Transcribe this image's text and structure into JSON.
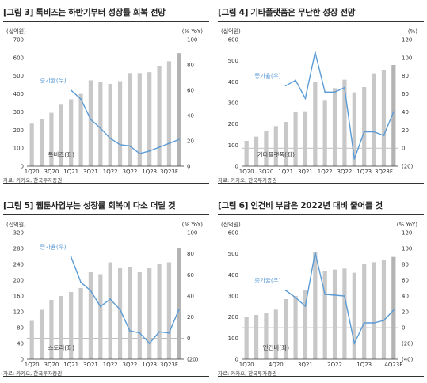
{
  "source_label": "자료: 카카오, 한국투자증권",
  "colors": {
    "bar": "#c8c8c8",
    "bar_last": "#b4b4b4",
    "line": "#5b9bd5",
    "text": "#222222"
  },
  "chart_data": [
    {
      "type": "bar",
      "title": "[그림 3] 톡비즈는 하반기부터 성장률 회복 전망",
      "left_unit": "(십억원)",
      "right_unit": "(% YoY)",
      "left_ticks": [
        "0",
        "100",
        "200",
        "300",
        "400",
        "500",
        "600",
        "700"
      ],
      "right_ticks": [
        "0",
        "20",
        "40",
        "60",
        "80",
        "100"
      ],
      "x_ticks": [
        "1Q20",
        "3Q20",
        "1Q21",
        "3Q21",
        "1Q22",
        "3Q22",
        "1Q23",
        "3Q23F"
      ],
      "ylim_left": [
        0,
        700
      ],
      "ylim_right": [
        0,
        100
      ],
      "bar_label": "톡비즈(좌)",
      "line_label": "증가율(우)",
      "categories": [
        "1Q20",
        "2Q20",
        "3Q20",
        "4Q20",
        "1Q21",
        "2Q21",
        "3Q21",
        "4Q21",
        "1Q22",
        "2Q22",
        "3Q22",
        "4Q22",
        "1Q23",
        "2Q23",
        "3Q23F",
        "4Q23F"
      ],
      "bars": [
        235,
        260,
        295,
        340,
        370,
        400,
        475,
        465,
        455,
        470,
        515,
        515,
        520,
        555,
        580,
        625
      ],
      "line_start": 4,
      "line": [
        60,
        53,
        37,
        30,
        22,
        17,
        16,
        10,
        12,
        15,
        18,
        21
      ]
    },
    {
      "type": "bar",
      "title": "[그림 4] 기타플랫폼은 무난한 성장 전망",
      "left_unit": "(십억원)",
      "right_unit": "(%)",
      "left_ticks": [
        "0",
        "100",
        "200",
        "300",
        "400",
        "500",
        "600"
      ],
      "right_ticks": [
        "(20)",
        "0",
        "20",
        "40",
        "60",
        "80",
        "100",
        "120"
      ],
      "x_ticks": [
        "1Q20",
        "3Q20",
        "1Q21",
        "3Q21",
        "1Q22",
        "3Q22",
        "1Q23",
        "3Q23F"
      ],
      "ylim_left": [
        0,
        600
      ],
      "ylim_right": [
        -20,
        120
      ],
      "bar_label": "기타플랫폼(좌)",
      "line_label": "증가율(우)",
      "categories": [
        "1Q20",
        "2Q20",
        "3Q20",
        "4Q20",
        "1Q21",
        "2Q21",
        "3Q21",
        "4Q21",
        "1Q22",
        "2Q22",
        "3Q22",
        "4Q22",
        "1Q23",
        "2Q23",
        "3Q23F",
        "4Q23F"
      ],
      "bars": [
        120,
        140,
        165,
        190,
        210,
        255,
        260,
        400,
        310,
        370,
        410,
        350,
        375,
        440,
        455,
        480
      ],
      "line_start": 4,
      "line": [
        69,
        75,
        55,
        106,
        62,
        62,
        67,
        -12,
        18,
        18,
        14,
        40
      ]
    },
    {
      "type": "bar",
      "title": "[그림 5] 웹툰사업부는 성장률 회복이 다소 더딜 것",
      "left_unit": "(십억원)",
      "right_unit": "(% YoY)",
      "left_ticks": [
        "0",
        "40",
        "80",
        "120",
        "160",
        "200",
        "240",
        "280",
        "320"
      ],
      "right_ticks": [
        "(20)",
        "0",
        "20",
        "40",
        "60",
        "80",
        "100"
      ],
      "x_ticks": [
        "1Q20",
        "3Q20",
        "1Q21",
        "3Q21",
        "1Q22",
        "3Q22",
        "1Q23",
        "3Q23F"
      ],
      "ylim_left": [
        0,
        320
      ],
      "ylim_right": [
        -20,
        100
      ],
      "bar_label": "스토리(좌)",
      "line_label": "증가율(우)",
      "categories": [
        "1Q20",
        "2Q20",
        "3Q20",
        "4Q20",
        "1Q21",
        "2Q21",
        "3Q21",
        "4Q21",
        "1Q22",
        "2Q22",
        "3Q22",
        "4Q22",
        "1Q23",
        "2Q23",
        "3Q23F",
        "4Q23F"
      ],
      "bars": [
        97,
        125,
        150,
        160,
        170,
        180,
        220,
        215,
        245,
        230,
        233,
        220,
        230,
        240,
        245,
        282
      ],
      "line_start": 4,
      "line": [
        77,
        53,
        45,
        30,
        37,
        27,
        7,
        5,
        -5,
        6,
        5,
        27
      ]
    },
    {
      "type": "bar",
      "title": "[그림 6] 인건비 부담은 2022년 대비 줄어들 것",
      "left_unit": "(십억원)",
      "right_unit": "(% YoY)",
      "left_ticks": [
        "0",
        "100",
        "200",
        "300",
        "400",
        "500",
        "600"
      ],
      "right_ticks": [
        "(40)",
        "(20)",
        "0",
        "20",
        "40",
        "60",
        "80",
        "100",
        "120"
      ],
      "x_ticks": [
        "1Q20",
        "4Q20",
        "3Q21",
        "2Q22",
        "1Q23",
        "4Q23F"
      ],
      "x_tick_positions": [
        0,
        3,
        6,
        9,
        12,
        15
      ],
      "ylim_left": [
        0,
        600
      ],
      "ylim_right": [
        -40,
        120
      ],
      "bar_label": "인건비(좌)",
      "line_label": "증가율(우)",
      "categories": [
        "1Q20",
        "2Q20",
        "3Q20",
        "4Q20",
        "1Q21",
        "2Q21",
        "3Q21",
        "4Q21",
        "1Q22",
        "2Q22",
        "3Q22",
        "4Q22",
        "1Q23",
        "2Q23",
        "3Q23F",
        "4Q23F"
      ],
      "bars": [
        200,
        210,
        220,
        235,
        285,
        300,
        330,
        510,
        420,
        425,
        430,
        410,
        450,
        460,
        470,
        485
      ],
      "line_start": 4,
      "line": [
        47,
        38,
        27,
        95,
        42,
        41,
        40,
        -20,
        6,
        6,
        9,
        22
      ]
    }
  ]
}
